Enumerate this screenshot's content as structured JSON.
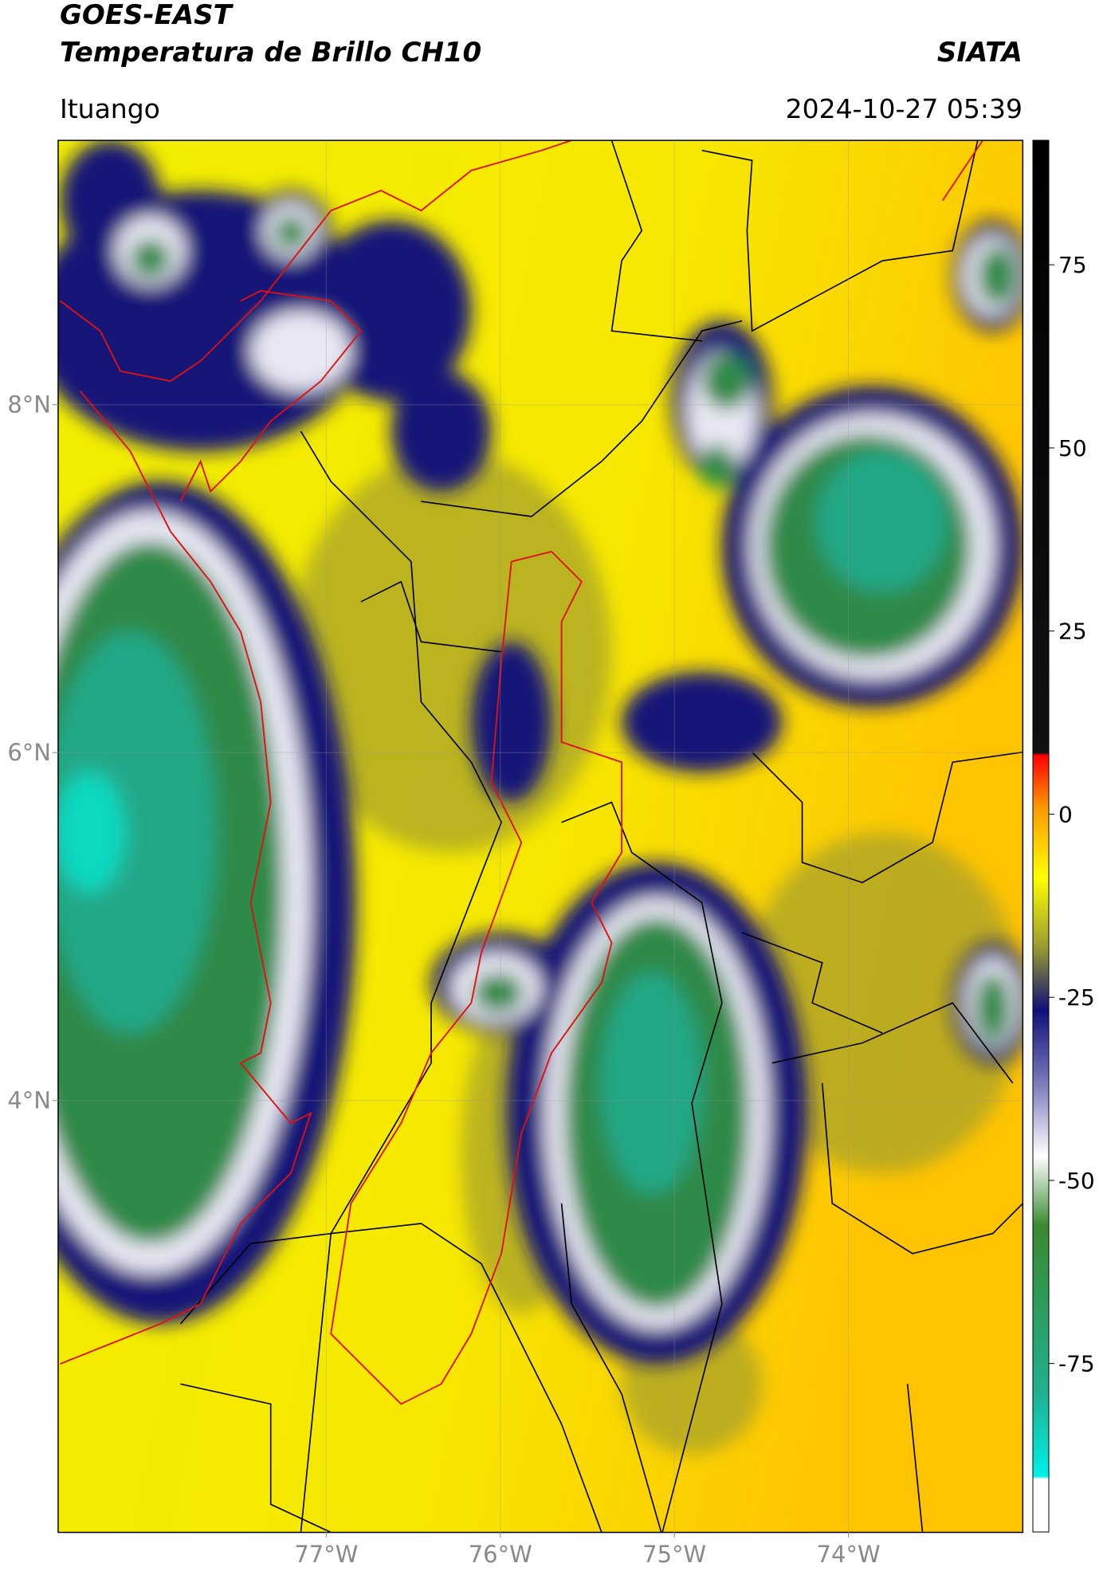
{
  "header": {
    "title_line1": "GOES-EAST",
    "title_line2": "Temperatura de Brillo CH10",
    "brand": "SIATA",
    "location": "Ituango",
    "datetime": "2024-10-27 05:39"
  },
  "map": {
    "xlim": [
      -78.54,
      -73.0
    ],
    "ylim": [
      1.52,
      9.52
    ],
    "xticks": [
      {
        "value": -77,
        "label": "77°W"
      },
      {
        "value": -76,
        "label": "76°W"
      },
      {
        "value": -75,
        "label": "75°W"
      },
      {
        "value": -74,
        "label": "74°W"
      }
    ],
    "yticks": [
      {
        "value": 4,
        "label": "4°N"
      },
      {
        "value": 6,
        "label": "6°N"
      },
      {
        "value": 8,
        "label": "8°N"
      }
    ],
    "grid": true
  },
  "colorbar": {
    "ylim": [
      -98,
      92
    ],
    "yticks": [
      -75,
      -50,
      -25,
      0,
      25,
      50,
      75
    ]
  }
}
